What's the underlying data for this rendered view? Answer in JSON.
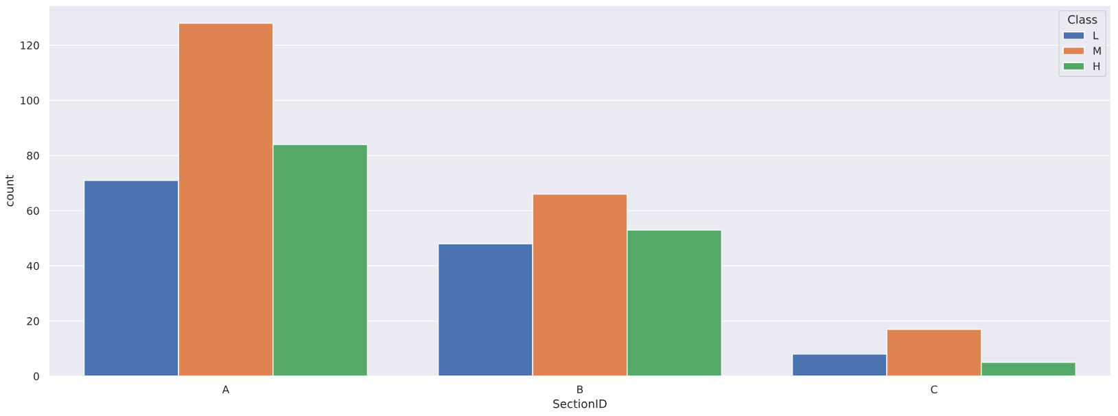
{
  "chart_data": {
    "type": "bar",
    "xlabel": "SectionID",
    "ylabel": "count",
    "legend_title": "Class",
    "categories": [
      "A",
      "B",
      "C"
    ],
    "series": [
      {
        "name": "L",
        "color": "#4c72b0",
        "values": [
          71,
          48,
          8
        ]
      },
      {
        "name": "M",
        "color": "#dd8452",
        "values": [
          128,
          66,
          17
        ]
      },
      {
        "name": "H",
        "color": "#55a868",
        "values": [
          84,
          53,
          5
        ]
      }
    ],
    "ylim": [
      0,
      134.4
    ],
    "yticks": [
      0,
      20,
      40,
      60,
      80,
      100,
      120
    ],
    "grid": "y",
    "legend": "top right"
  }
}
